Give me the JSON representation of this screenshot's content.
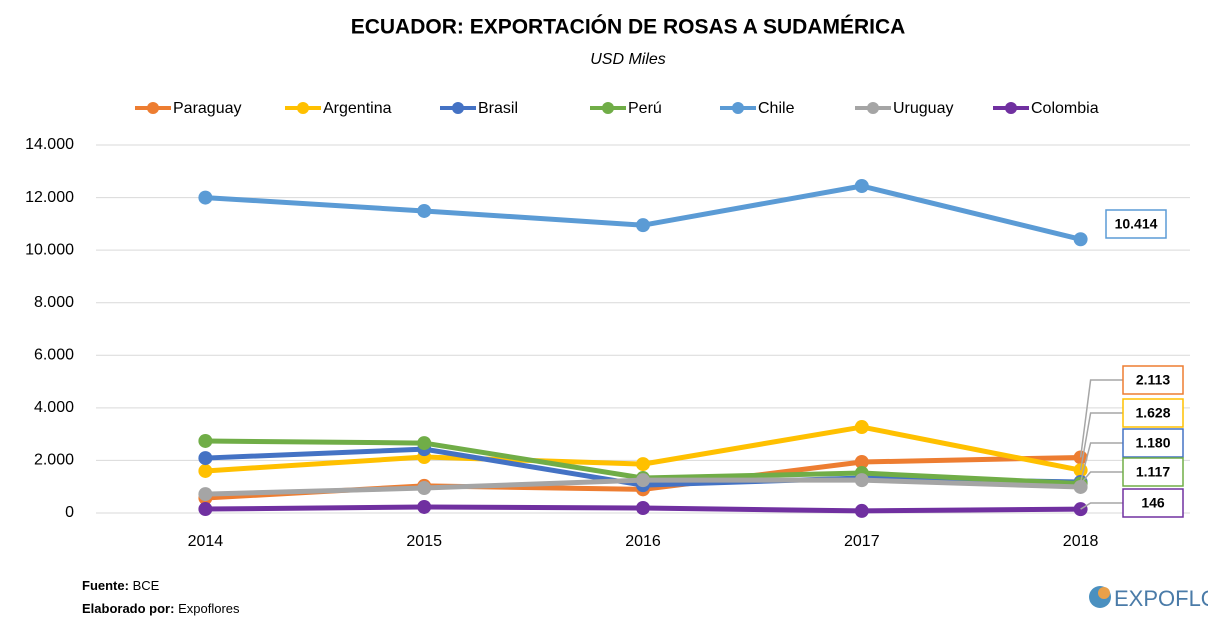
{
  "chart_data": {
    "type": "line",
    "title": "ECUADOR: EXPORTACIÓN DE ROSAS A SUDAMÉRICA",
    "subtitle": "USD Miles",
    "categories": [
      "2014",
      "2015",
      "2016",
      "2017",
      "2018"
    ],
    "series": [
      {
        "name": "Paraguay",
        "color": "#ED7D31",
        "values": [
          570,
          1030,
          900,
          1940,
          2113
        ],
        "value_labels": [
          null,
          null,
          null,
          null,
          "2.113"
        ]
      },
      {
        "name": "Argentina",
        "color": "#FFC000",
        "values": [
          1600,
          2130,
          1860,
          3270,
          1628
        ],
        "value_labels": [
          null,
          null,
          null,
          null,
          "1.628"
        ]
      },
      {
        "name": "Brasil",
        "color": "#4472C4",
        "values": [
          2090,
          2430,
          1060,
          1330,
          1180
        ],
        "value_labels": [
          null,
          null,
          null,
          null,
          "1.180"
        ]
      },
      {
        "name": "Perú",
        "color": "#70AD47",
        "values": [
          2740,
          2660,
          1330,
          1520,
          1117
        ],
        "value_labels": [
          null,
          null,
          null,
          null,
          "1.117"
        ]
      },
      {
        "name": "Chile",
        "color": "#5B9BD5",
        "values": [
          12000,
          11490,
          10950,
          12440,
          10414
        ],
        "value_labels": [
          null,
          null,
          null,
          null,
          "10.414"
        ]
      },
      {
        "name": "Uruguay",
        "color": "#A5A5A5",
        "values": [
          720,
          950,
          1250,
          1250,
          990
        ]
      },
      {
        "name": "Colombia",
        "color": "#7030A0",
        "values": [
          150,
          230,
          190,
          80,
          146
        ],
        "value_labels": [
          null,
          null,
          null,
          null,
          "146"
        ]
      }
    ],
    "ylim": [
      0,
      14000
    ],
    "yticks": [
      0,
      {
        "value": 2000,
        "label": "2.000"
      },
      {
        "value": 4000,
        "label": "4.000"
      },
      {
        "value": 6000,
        "label": "6.000"
      },
      {
        "value": 8000,
        "label": "8.000"
      },
      {
        "value": 10000,
        "label": "10.000"
      },
      {
        "value": 12000,
        "label": "12.000"
      },
      {
        "value": 14000,
        "label": "14.000"
      }
    ],
    "grid": true,
    "legend": "top"
  },
  "footer": {
    "source_label": "Fuente:",
    "source": "BCE",
    "author_label": "Elaborado por:",
    "author": "Expoflores",
    "logo": "EXPOFLORES"
  }
}
